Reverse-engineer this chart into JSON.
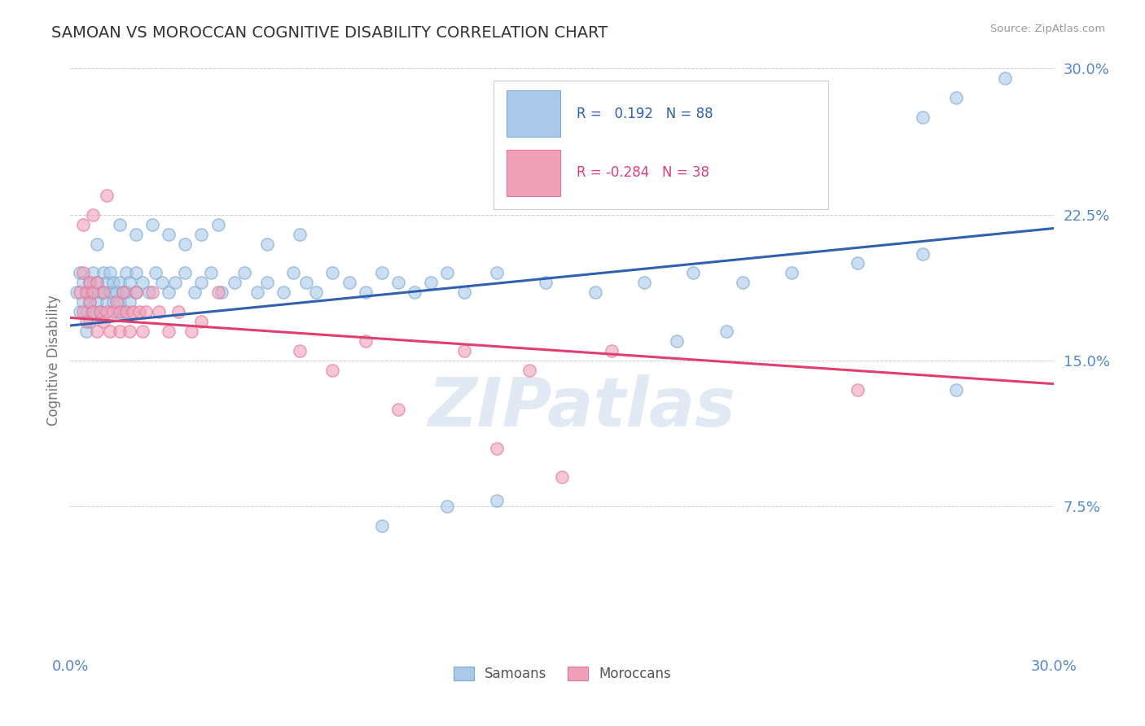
{
  "title": "SAMOAN VS MOROCCAN COGNITIVE DISABILITY CORRELATION CHART",
  "source": "Source: ZipAtlas.com",
  "ylabel": "Cognitive Disability",
  "xlim": [
    0.0,
    0.3
  ],
  "ylim": [
    0.0,
    0.3
  ],
  "yticks": [
    0.075,
    0.15,
    0.225,
    0.3
  ],
  "ytick_labels": [
    "7.5%",
    "15.0%",
    "22.5%",
    "30.0%"
  ],
  "xtick_labels": [
    "0.0%",
    "30.0%"
  ],
  "samoan_color_fill": "#aac8e8",
  "samoan_color_edge": "#7aaad0",
  "moroccan_color_fill": "#f0a0b8",
  "moroccan_color_edge": "#e07898",
  "blue_line_color": "#3060b0",
  "pink_line_color": "#e04070",
  "background_color": "#ffffff",
  "grid_color": "#cccccc",
  "title_color": "#333333",
  "axis_label_color": "#5588cc",
  "watermark": "ZIPatlas",
  "blue_line_x": [
    0.0,
    0.3
  ],
  "blue_line_y": [
    0.168,
    0.218
  ],
  "pink_line_x": [
    0.0,
    0.3
  ],
  "pink_line_y": [
    0.172,
    0.138
  ],
  "samoan_points": [
    [
      0.002,
      0.185
    ],
    [
      0.003,
      0.195
    ],
    [
      0.003,
      0.175
    ],
    [
      0.004,
      0.19
    ],
    [
      0.004,
      0.18
    ],
    [
      0.005,
      0.185
    ],
    [
      0.005,
      0.175
    ],
    [
      0.005,
      0.165
    ],
    [
      0.006,
      0.19
    ],
    [
      0.006,
      0.18
    ],
    [
      0.006,
      0.17
    ],
    [
      0.007,
      0.195
    ],
    [
      0.007,
      0.185
    ],
    [
      0.007,
      0.175
    ],
    [
      0.008,
      0.19
    ],
    [
      0.008,
      0.18
    ],
    [
      0.009,
      0.185
    ],
    [
      0.009,
      0.175
    ],
    [
      0.01,
      0.195
    ],
    [
      0.01,
      0.185
    ],
    [
      0.011,
      0.19
    ],
    [
      0.011,
      0.18
    ],
    [
      0.012,
      0.195
    ],
    [
      0.012,
      0.185
    ],
    [
      0.013,
      0.19
    ],
    [
      0.013,
      0.18
    ],
    [
      0.014,
      0.185
    ],
    [
      0.014,
      0.175
    ],
    [
      0.015,
      0.19
    ],
    [
      0.015,
      0.18
    ],
    [
      0.016,
      0.185
    ],
    [
      0.016,
      0.175
    ],
    [
      0.017,
      0.195
    ],
    [
      0.017,
      0.185
    ],
    [
      0.018,
      0.19
    ],
    [
      0.018,
      0.18
    ],
    [
      0.02,
      0.195
    ],
    [
      0.02,
      0.185
    ],
    [
      0.022,
      0.19
    ],
    [
      0.024,
      0.185
    ],
    [
      0.026,
      0.195
    ],
    [
      0.028,
      0.19
    ],
    [
      0.03,
      0.185
    ],
    [
      0.032,
      0.19
    ],
    [
      0.035,
      0.195
    ],
    [
      0.038,
      0.185
    ],
    [
      0.04,
      0.19
    ],
    [
      0.043,
      0.195
    ],
    [
      0.046,
      0.185
    ],
    [
      0.05,
      0.19
    ],
    [
      0.053,
      0.195
    ],
    [
      0.057,
      0.185
    ],
    [
      0.06,
      0.19
    ],
    [
      0.065,
      0.185
    ],
    [
      0.068,
      0.195
    ],
    [
      0.072,
      0.19
    ],
    [
      0.075,
      0.185
    ],
    [
      0.08,
      0.195
    ],
    [
      0.085,
      0.19
    ],
    [
      0.09,
      0.185
    ],
    [
      0.095,
      0.195
    ],
    [
      0.1,
      0.19
    ],
    [
      0.105,
      0.185
    ],
    [
      0.11,
      0.19
    ],
    [
      0.115,
      0.195
    ],
    [
      0.12,
      0.185
    ],
    [
      0.008,
      0.21
    ],
    [
      0.015,
      0.22
    ],
    [
      0.02,
      0.215
    ],
    [
      0.025,
      0.22
    ],
    [
      0.03,
      0.215
    ],
    [
      0.035,
      0.21
    ],
    [
      0.04,
      0.215
    ],
    [
      0.045,
      0.22
    ],
    [
      0.06,
      0.21
    ],
    [
      0.07,
      0.215
    ],
    [
      0.13,
      0.195
    ],
    [
      0.145,
      0.19
    ],
    [
      0.16,
      0.185
    ],
    [
      0.175,
      0.19
    ],
    [
      0.19,
      0.195
    ],
    [
      0.205,
      0.19
    ],
    [
      0.22,
      0.195
    ],
    [
      0.24,
      0.2
    ],
    [
      0.26,
      0.205
    ],
    [
      0.185,
      0.16
    ],
    [
      0.2,
      0.165
    ],
    [
      0.27,
      0.285
    ],
    [
      0.285,
      0.295
    ],
    [
      0.26,
      0.275
    ],
    [
      0.095,
      0.065
    ],
    [
      0.27,
      0.135
    ],
    [
      0.115,
      0.075
    ],
    [
      0.13,
      0.078
    ]
  ],
  "moroccan_points": [
    [
      0.003,
      0.185
    ],
    [
      0.004,
      0.195
    ],
    [
      0.004,
      0.175
    ],
    [
      0.005,
      0.185
    ],
    [
      0.005,
      0.17
    ],
    [
      0.006,
      0.19
    ],
    [
      0.006,
      0.18
    ],
    [
      0.007,
      0.185
    ],
    [
      0.007,
      0.175
    ],
    [
      0.008,
      0.19
    ],
    [
      0.008,
      0.165
    ],
    [
      0.009,
      0.175
    ],
    [
      0.01,
      0.185
    ],
    [
      0.01,
      0.17
    ],
    [
      0.011,
      0.175
    ],
    [
      0.012,
      0.165
    ],
    [
      0.013,
      0.175
    ],
    [
      0.014,
      0.18
    ],
    [
      0.015,
      0.175
    ],
    [
      0.015,
      0.165
    ],
    [
      0.016,
      0.185
    ],
    [
      0.017,
      0.175
    ],
    [
      0.018,
      0.165
    ],
    [
      0.019,
      0.175
    ],
    [
      0.02,
      0.185
    ],
    [
      0.021,
      0.175
    ],
    [
      0.022,
      0.165
    ],
    [
      0.023,
      0.175
    ],
    [
      0.025,
      0.185
    ],
    [
      0.027,
      0.175
    ],
    [
      0.03,
      0.165
    ],
    [
      0.033,
      0.175
    ],
    [
      0.037,
      0.165
    ],
    [
      0.04,
      0.17
    ],
    [
      0.004,
      0.22
    ],
    [
      0.007,
      0.225
    ],
    [
      0.011,
      0.235
    ],
    [
      0.045,
      0.185
    ],
    [
      0.07,
      0.155
    ],
    [
      0.08,
      0.145
    ],
    [
      0.09,
      0.16
    ],
    [
      0.1,
      0.125
    ],
    [
      0.12,
      0.155
    ],
    [
      0.14,
      0.145
    ],
    [
      0.165,
      0.155
    ],
    [
      0.24,
      0.135
    ],
    [
      0.13,
      0.105
    ],
    [
      0.15,
      0.09
    ]
  ]
}
